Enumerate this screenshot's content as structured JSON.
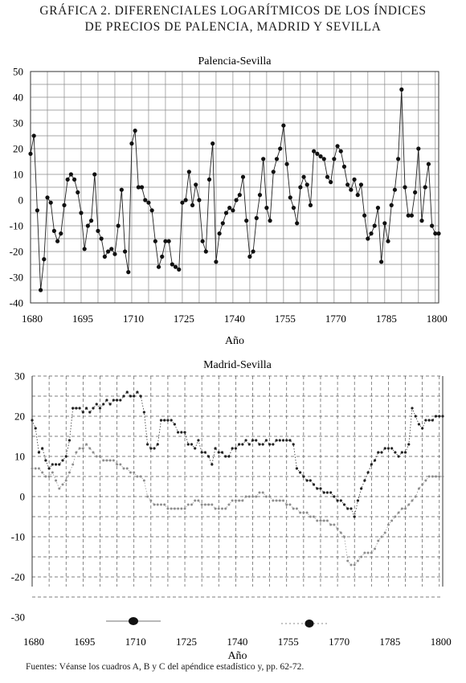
{
  "figure": {
    "title_line1": "GRÁFICA 2. DIFERENCIALES LOGARÍTMICOS DE LOS ÍNDICES",
    "title_line2": "DE PRECIOS DE PALENCIA, MADRID Y SEVILLA",
    "source_label": "Fuentes:",
    "source_text": "Véanse los cuadros A, B y C del apéndice estadístico y, pp. 62-72."
  },
  "chart_data": [
    {
      "type": "line",
      "title": "Palencia-Sevilla",
      "xlabel": "Año",
      "ylabel": "",
      "xlim": [
        1680,
        1801
      ],
      "ylim": [
        -40,
        50
      ],
      "xticks": [
        1680,
        1695,
        1710,
        1725,
        1740,
        1755,
        1770,
        1785,
        1800
      ],
      "yticks": [
        50,
        40,
        30,
        20,
        10,
        0,
        -10,
        -20,
        -30,
        -40
      ],
      "grid": true,
      "series": [
        {
          "marker": "filled-circle",
          "x": [
            1680,
            1681,
            1682,
            1683,
            1684,
            1685,
            1686,
            1687,
            1688,
            1689,
            1690,
            1691,
            1692,
            1693,
            1694,
            1695,
            1696,
            1697,
            1698,
            1699,
            1700,
            1701,
            1702,
            1703,
            1704,
            1705,
            1706,
            1707,
            1708,
            1709,
            1710,
            1711,
            1712,
            1713,
            1714,
            1715,
            1716,
            1717,
            1718,
            1719,
            1720,
            1721,
            1722,
            1723,
            1724,
            1725,
            1726,
            1727,
            1728,
            1729,
            1730,
            1731,
            1732,
            1733,
            1734,
            1735,
            1736,
            1737,
            1738,
            1739,
            1740,
            1741,
            1742,
            1743,
            1744,
            1745,
            1746,
            1747,
            1748,
            1749,
            1750,
            1751,
            1752,
            1753,
            1754,
            1755,
            1756,
            1757,
            1758,
            1759,
            1760,
            1761,
            1762,
            1763,
            1764,
            1765,
            1766,
            1767,
            1768,
            1769,
            1770,
            1771,
            1772,
            1773,
            1774,
            1775,
            1776,
            1777,
            1778,
            1779,
            1780,
            1781,
            1782,
            1783,
            1784,
            1785,
            1786,
            1787,
            1788,
            1789,
            1790,
            1791,
            1792,
            1793,
            1794,
            1795,
            1796,
            1797,
            1798,
            1799,
            1800,
            1801
          ],
          "y": [
            18,
            25,
            -4,
            -35,
            -23,
            1,
            -1,
            -12,
            -16,
            -13,
            -2,
            8,
            10,
            8,
            3,
            -5,
            -19,
            -10,
            -8,
            10,
            -12,
            -15,
            -22,
            -20,
            -19,
            -21,
            -10,
            4,
            -20,
            -28,
            22,
            27,
            5,
            5,
            0,
            -1,
            -4,
            -16,
            -26,
            -22,
            -16,
            -16,
            -25,
            -26,
            -27,
            -1,
            0,
            11,
            -2,
            6,
            0,
            -16,
            -20,
            8,
            22,
            -24,
            -13,
            -9,
            -5,
            -3,
            -4,
            0,
            2,
            9,
            -8,
            -22,
            -20,
            -7,
            2,
            16,
            -3,
            -8,
            11,
            16,
            20,
            29,
            14,
            1,
            -3,
            -9,
            5,
            9,
            6,
            -2,
            19,
            18,
            17,
            16,
            9,
            7,
            16,
            21,
            19,
            13,
            6,
            4,
            8,
            2,
            6,
            -6,
            -15,
            -13,
            -10,
            -3,
            -24,
            -9,
            -16,
            -2,
            4,
            16,
            43,
            5,
            -6,
            -6,
            3,
            20,
            -8,
            5,
            14,
            -10,
            -13,
            -13
          ]
        }
      ]
    },
    {
      "type": "line",
      "title": "Madrid-Sevilla",
      "xlabel": "Año",
      "ylabel": "",
      "xlim": [
        1680,
        1801
      ],
      "ylim": [
        -30,
        30
      ],
      "xticks": [
        1680,
        1695,
        1710,
        1725,
        1740,
        1755,
        1770,
        1785,
        1800
      ],
      "yticks": [
        30,
        20,
        10,
        0,
        -10,
        -20,
        -30
      ],
      "grid": true,
      "series": [
        {
          "style": "dark dotted line",
          "x": [
            1680,
            1681,
            1682,
            1683,
            1684,
            1685,
            1686,
            1687,
            1688,
            1689,
            1690,
            1691,
            1692,
            1693,
            1694,
            1695,
            1696,
            1697,
            1698,
            1699,
            1700,
            1701,
            1702,
            1703,
            1704,
            1705,
            1706,
            1707,
            1708,
            1709,
            1710,
            1711,
            1712,
            1713,
            1714,
            1715,
            1716,
            1717,
            1718,
            1719,
            1720,
            1721,
            1722,
            1723,
            1724,
            1725,
            1726,
            1727,
            1728,
            1729,
            1730,
            1731,
            1732,
            1733,
            1734,
            1735,
            1736,
            1737,
            1738,
            1739,
            1740,
            1741,
            1742,
            1743,
            1744,
            1745,
            1746,
            1747,
            1748,
            1749,
            1750,
            1751,
            1752,
            1753,
            1754,
            1755,
            1756,
            1757,
            1758,
            1759,
            1760,
            1761,
            1762,
            1763,
            1764,
            1765,
            1766,
            1767,
            1768,
            1769,
            1770,
            1771,
            1772,
            1773,
            1774,
            1775,
            1776,
            1777,
            1778,
            1779,
            1780,
            1781,
            1782,
            1783,
            1784,
            1785,
            1786,
            1787,
            1788,
            1789,
            1790,
            1791,
            1792,
            1793,
            1794,
            1795,
            1796,
            1797,
            1798,
            1799,
            1800,
            1801
          ],
          "y": [
            19,
            17,
            11,
            12,
            9,
            7,
            8,
            8,
            8,
            9,
            10,
            14,
            22,
            22,
            22,
            21,
            22,
            21,
            22,
            23,
            22,
            23,
            24,
            23,
            24,
            24,
            24,
            25,
            26,
            25,
            25,
            26,
            25,
            21,
            13,
            12,
            12,
            13,
            19,
            19,
            19,
            19,
            18,
            16,
            16,
            16,
            13,
            13,
            12,
            14,
            11,
            11,
            10,
            8,
            12,
            11,
            11,
            10,
            10,
            12,
            12,
            13,
            13,
            14,
            13,
            14,
            14,
            13,
            13,
            14,
            13,
            13,
            14,
            14,
            14,
            14,
            14,
            13,
            7,
            6,
            5,
            4,
            4,
            3,
            2,
            2,
            1,
            1,
            1,
            0,
            -1,
            -1,
            -2,
            -3,
            -3,
            -5,
            -1,
            2,
            4,
            6,
            8,
            9,
            11,
            11,
            12,
            12,
            12,
            11,
            10,
            11,
            11,
            13,
            22,
            20,
            18,
            17,
            19,
            19,
            19,
            20,
            20,
            20
          ]
        },
        {
          "style": "grey dotted line",
          "x": [
            1680,
            1681,
            1682,
            1683,
            1684,
            1685,
            1686,
            1687,
            1688,
            1689,
            1690,
            1691,
            1692,
            1693,
            1694,
            1695,
            1696,
            1697,
            1698,
            1699,
            1700,
            1701,
            1702,
            1703,
            1704,
            1705,
            1706,
            1707,
            1708,
            1709,
            1710,
            1711,
            1712,
            1713,
            1714,
            1715,
            1716,
            1717,
            1718,
            1719,
            1720,
            1721,
            1722,
            1723,
            1724,
            1725,
            1726,
            1727,
            1728,
            1729,
            1730,
            1731,
            1732,
            1733,
            1734,
            1735,
            1736,
            1737,
            1738,
            1739,
            1740,
            1741,
            1742,
            1743,
            1744,
            1745,
            1746,
            1747,
            1748,
            1749,
            1750,
            1751,
            1752,
            1753,
            1754,
            1755,
            1756,
            1757,
            1758,
            1759,
            1760,
            1761,
            1762,
            1763,
            1764,
            1765,
            1766,
            1767,
            1768,
            1769,
            1770,
            1771,
            1772,
            1773,
            1774,
            1775,
            1776,
            1777,
            1778,
            1779,
            1780,
            1781,
            1782,
            1783,
            1784,
            1785,
            1786,
            1787,
            1788,
            1789,
            1790,
            1791,
            1792,
            1793,
            1794,
            1795,
            1796,
            1797,
            1798,
            1799,
            1800,
            1801
          ],
          "y": [
            7,
            7,
            7,
            6,
            5,
            5,
            6,
            4,
            2,
            3,
            4,
            6,
            8,
            11,
            12,
            12,
            13,
            12,
            11,
            10,
            10,
            9,
            9,
            9,
            9,
            8,
            8,
            7,
            7,
            6,
            6,
            5,
            5,
            4,
            0,
            -1,
            -2,
            -2,
            -2,
            -2,
            -3,
            -3,
            -3,
            -3,
            -3,
            -3,
            -2,
            -2,
            -1,
            -1,
            -2,
            -2,
            -2,
            -2,
            -3,
            -3,
            -3,
            -3,
            -2,
            -1,
            -1,
            -1,
            -1,
            0,
            0,
            0,
            0,
            1,
            1,
            0,
            0,
            -1,
            -1,
            -1,
            -1,
            -2,
            -2,
            -3,
            -3,
            -4,
            -4,
            -4,
            -5,
            -5,
            -6,
            -6,
            -6,
            -6,
            -7,
            -7,
            -8,
            -9,
            -10,
            -16,
            -17,
            -17,
            -16,
            -15,
            -14,
            -14,
            -14,
            -13,
            -11,
            -10,
            -9,
            -7,
            -6,
            -5,
            -4,
            -3,
            -3,
            -2,
            -1,
            0,
            2,
            3,
            4,
            5,
            5,
            5,
            5,
            5
          ]
        }
      ]
    }
  ]
}
